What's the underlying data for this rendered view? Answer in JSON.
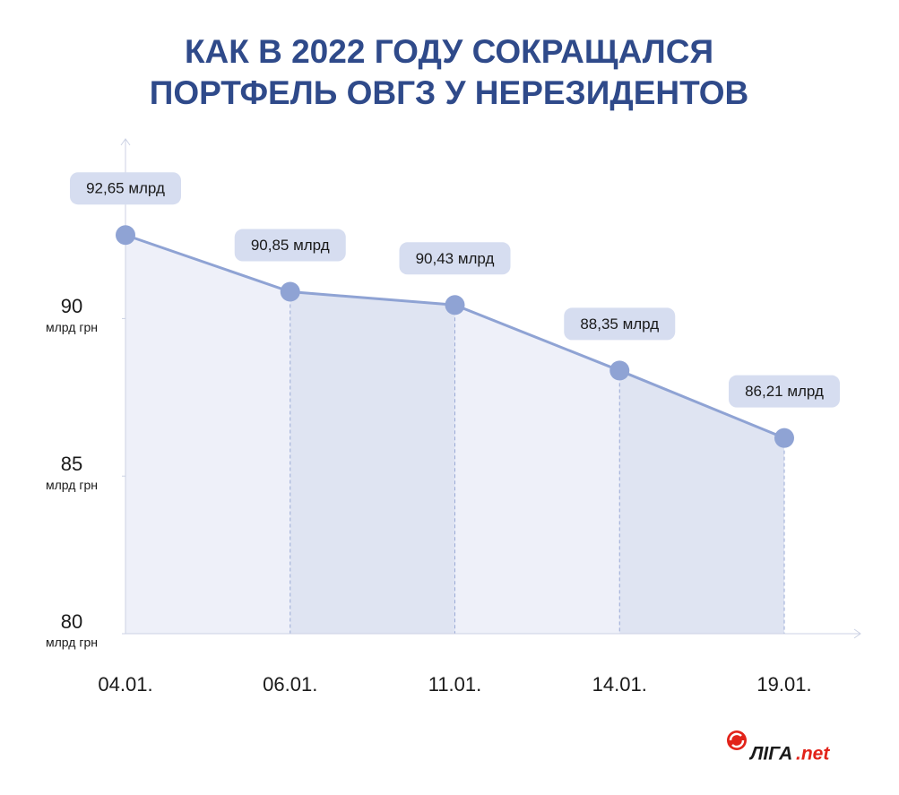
{
  "chart_data": {
    "type": "area-line",
    "title": [
      "КАК В 2022 ГОДУ СОКРАЩАЛСЯ",
      "ПОРТФЕЛЬ ОВГЗ У НЕРЕЗИДЕНТОВ"
    ],
    "categories": [
      "04.01.",
      "06.01.",
      "11.01.",
      "14.01.",
      "19.01."
    ],
    "values": [
      92.65,
      90.85,
      90.43,
      88.35,
      86.21
    ],
    "value_labels": [
      "92,65 млрд",
      "90,85 млрд",
      "90,43 млрд",
      "88,35 млрд",
      "86,21 млрд"
    ],
    "color": "#8fa3d4",
    "ylim": [
      80,
      95.7
    ],
    "yticks": [
      80,
      85,
      90
    ],
    "ytick_unit": "млрд грн",
    "logo": {
      "name": "ЛIГА",
      "suffix": ".net"
    }
  }
}
